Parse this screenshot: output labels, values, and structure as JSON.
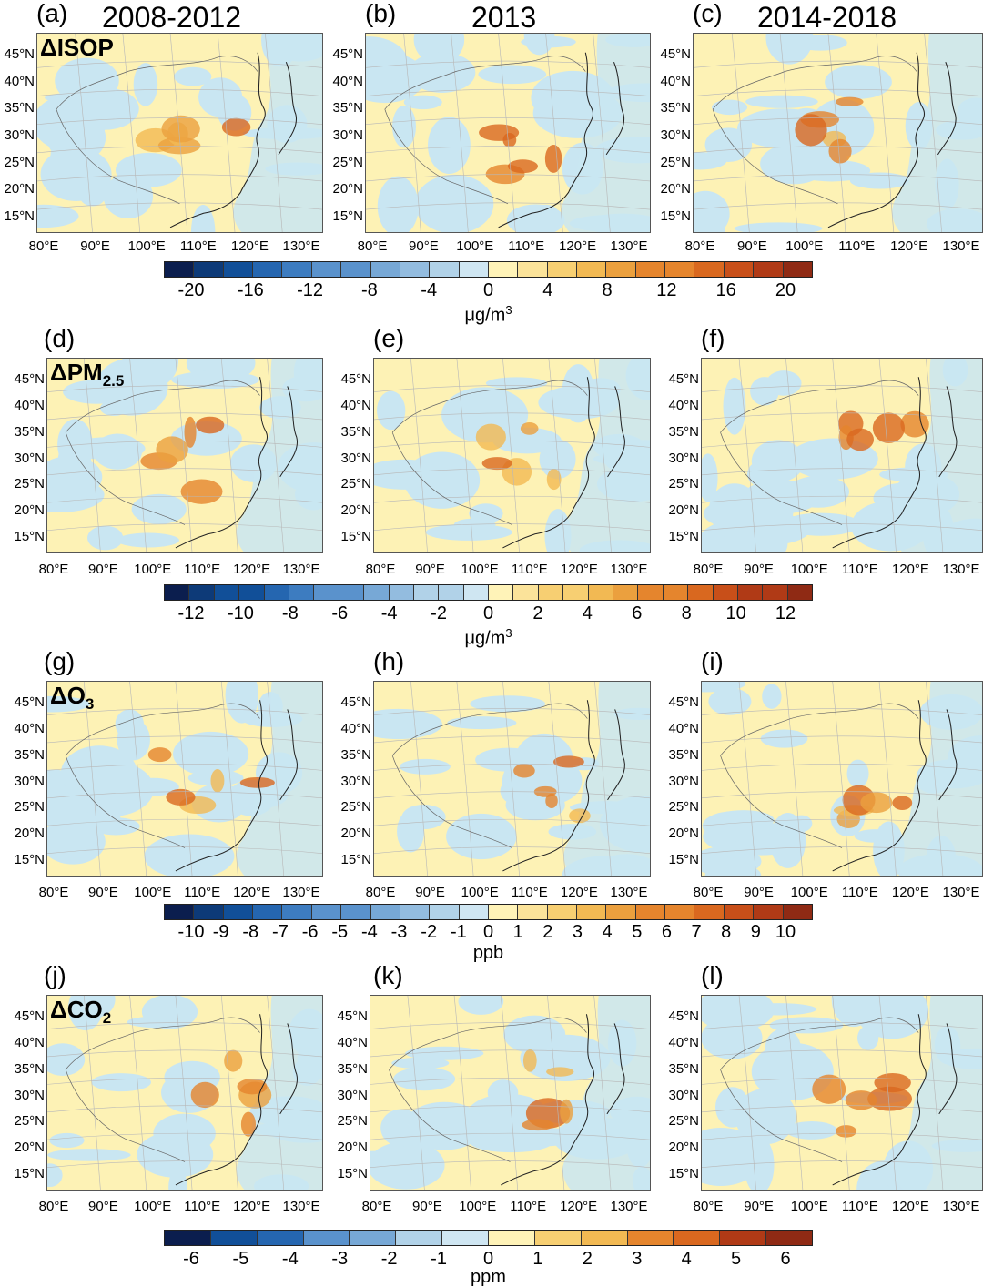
{
  "figure": {
    "columns": [
      "2008-2012",
      "2013",
      "2014-2018"
    ],
    "lat_labels": [
      "45°N",
      "40°N",
      "35°N",
      "30°N",
      "25°N",
      "20°N",
      "15°N"
    ],
    "lon_labels": [
      "80°E",
      "90°E",
      "100°E",
      "110°E",
      "120°E",
      "130°E"
    ],
    "colors": {
      "blues": [
        "#0b1e4e",
        "#0d3a78",
        "#114f98",
        "#2566b0",
        "#3d7cc0",
        "#5a92cc",
        "#77a8d6",
        "#93bcdf",
        "#b1d2e8",
        "#cfe6f2"
      ],
      "oranges": [
        "#fff3b8",
        "#fbe39a",
        "#f7cf72",
        "#f2b953",
        "#eba03e",
        "#e5852d",
        "#d9681f",
        "#c84f19",
        "#b03a16",
        "#8f2a14"
      ],
      "map_neg": "#c9e6f2",
      "map_pos": "#fdf2b5"
    },
    "rows": [
      {
        "variable": {
          "prefix": "Δ",
          "name": "ISOP",
          "sub": ""
        },
        "panel_labels": [
          "(a)",
          "(b)",
          "(c)"
        ],
        "colorbar": {
          "ticks": [
            "-20",
            "-16",
            "-12",
            "-8",
            "-4",
            "0",
            "4",
            "8",
            "12",
            "16",
            "20"
          ],
          "unit_base": "μg/m",
          "unit_sup": "3",
          "segments": 22
        }
      },
      {
        "variable": {
          "prefix": "Δ",
          "name": "PM",
          "sub": "2.5"
        },
        "panel_labels": [
          "(d)",
          "(e)",
          "(f)"
        ],
        "colorbar": {
          "ticks": [
            "-12",
            "-10",
            "-8",
            "-6",
            "-4",
            "-2",
            "0",
            "2",
            "4",
            "6",
            "8",
            "10",
            "12"
          ],
          "unit_base": "μg/m",
          "unit_sup": "3",
          "segments": 26
        }
      },
      {
        "variable": {
          "prefix": "Δ",
          "name": "O",
          "sub": "3"
        },
        "panel_labels": [
          "(g)",
          "(h)",
          "(i)"
        ],
        "colorbar": {
          "ticks": [
            "-10",
            "-9",
            "-8",
            "-7",
            "-6",
            "-5",
            "-4",
            "-3",
            "-2",
            "-1",
            "0",
            "1",
            "2",
            "3",
            "4",
            "5",
            "6",
            "7",
            "8",
            "9",
            "10"
          ],
          "unit_base": "ppb",
          "unit_sup": "",
          "segments": 22
        }
      },
      {
        "variable": {
          "prefix": "Δ",
          "name": "CO",
          "sub": "2"
        },
        "panel_labels": [
          "(j)",
          "(k)",
          "(l)"
        ],
        "colorbar": {
          "ticks": [
            "-6",
            "-5",
            "-4",
            "-3",
            "-2",
            "-1",
            "0",
            "1",
            "2",
            "3",
            "4",
            "5",
            "6"
          ],
          "unit_base": "ppm",
          "unit_sup": "",
          "segments": 14
        }
      }
    ]
  }
}
